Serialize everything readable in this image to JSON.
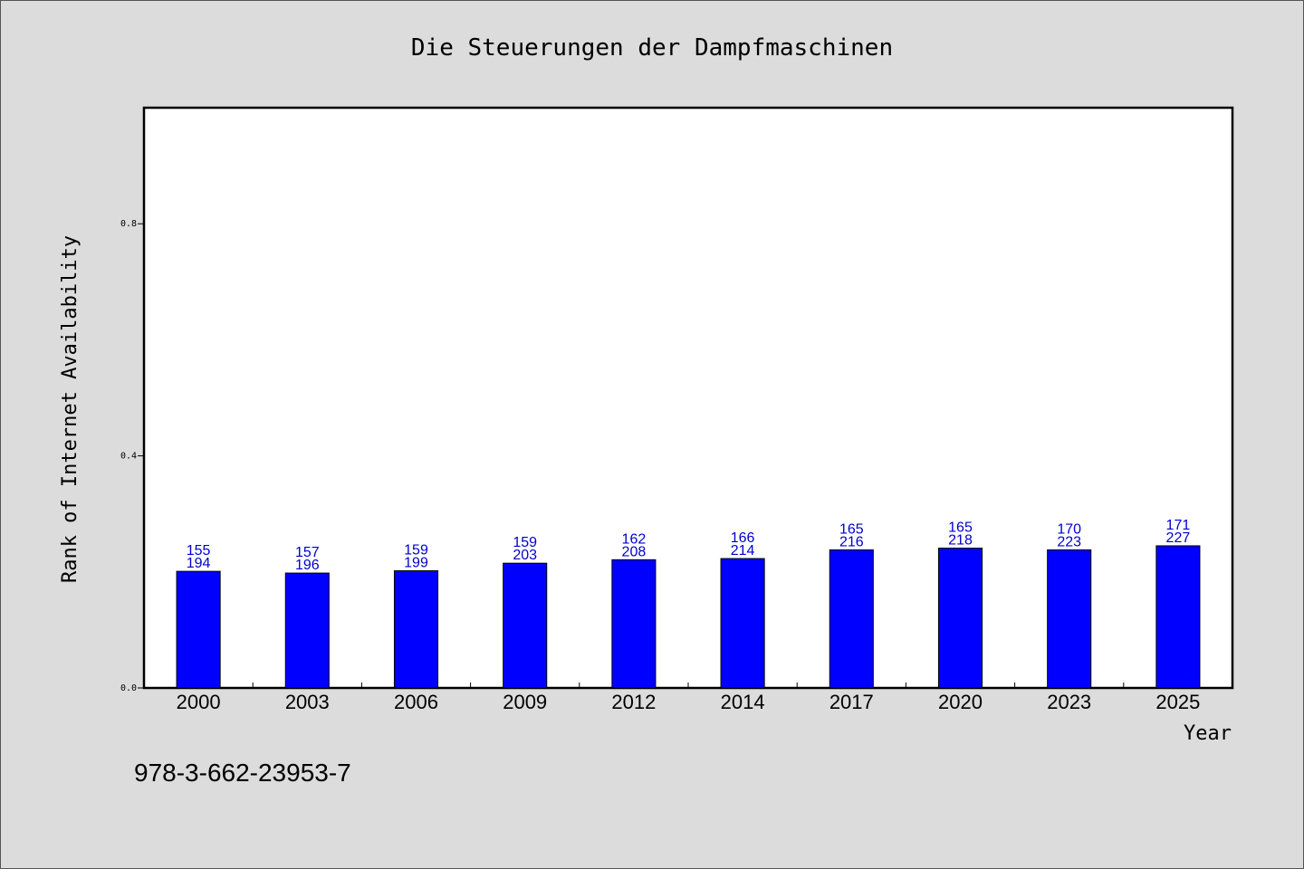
{
  "chart_data": {
    "type": "bar",
    "title": "Die Steuerungen der Dampfmaschinen",
    "xlabel": "Year",
    "ylabel": "Rank of Internet Availability",
    "categories": [
      "2000",
      "2003",
      "2006",
      "2009",
      "2012",
      "2014",
      "2017",
      "2020",
      "2023",
      "2025"
    ],
    "values": [
      0.201,
      0.198,
      0.202,
      0.215,
      0.221,
      0.223,
      0.238,
      0.241,
      0.238,
      0.245
    ],
    "labels_top": [
      "155",
      "157",
      "159",
      "159",
      "162",
      "166",
      "165",
      "165",
      "170",
      "171"
    ],
    "labels_bottom": [
      "194",
      "196",
      "199",
      "203",
      "208",
      "214",
      "216",
      "218",
      "223",
      "227"
    ],
    "ylim": [
      0,
      1.0
    ],
    "yticks": [
      "0.0",
      "0.4",
      "0.8"
    ],
    "ytick_values": [
      0.0,
      0.4,
      0.8
    ],
    "grid": false,
    "bar_color": "#0000ff",
    "label_color": "#0000cc"
  },
  "footer_text": "978-3-662-23953-7"
}
